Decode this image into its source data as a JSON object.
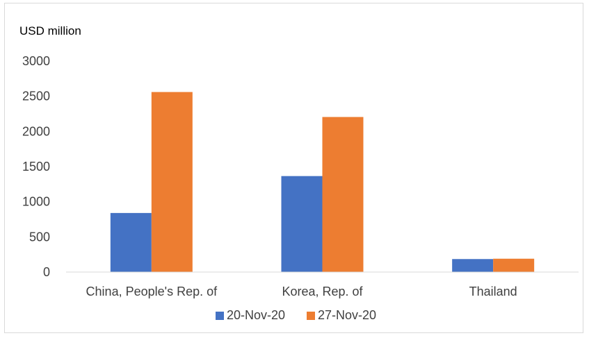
{
  "chart_data": {
    "type": "bar",
    "ylabel": "USD million",
    "categories": [
      "China, People's Rep. of",
      "Korea, Rep. of",
      "Thailand"
    ],
    "series": [
      {
        "name": "20-Nov-20",
        "values": [
          840,
          1365,
          185
        ],
        "color": "#4472C4"
      },
      {
        "name": "27-Nov-20",
        "values": [
          2560,
          2205,
          190
        ],
        "color": "#ED7D31"
      }
    ],
    "ylim": [
      0,
      3000
    ],
    "yticks": [
      "0",
      "500",
      "1000",
      "1500",
      "2000",
      "2500",
      "3000"
    ],
    "grid": false,
    "legend_position": "bottom"
  }
}
